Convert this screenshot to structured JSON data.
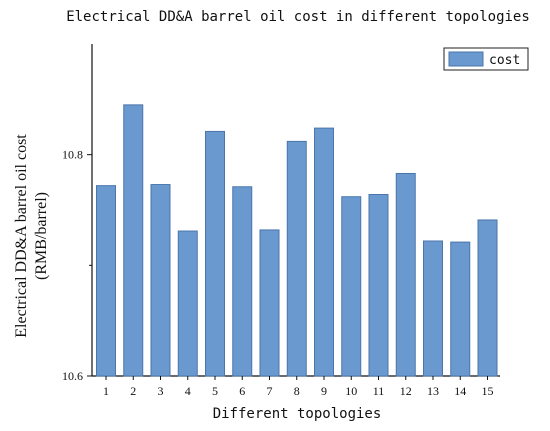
{
  "chart_data": {
    "type": "bar",
    "title": "Electrical DD&A barrel oil cost in different topologies",
    "xlabel": "Different topologies",
    "ylabel_line1": "Electrical DD&A barrel oil cost",
    "ylabel_line2": "(RMB/barrel)",
    "categories": [
      "1",
      "2",
      "3",
      "4",
      "5",
      "6",
      "7",
      "8",
      "9",
      "10",
      "11",
      "12",
      "13",
      "14",
      "15"
    ],
    "series": [
      {
        "name": "cost",
        "values": [
          10.772,
          10.845,
          10.773,
          10.731,
          10.821,
          10.771,
          10.732,
          10.812,
          10.824,
          10.762,
          10.764,
          10.783,
          10.722,
          10.721,
          10.741
        ]
      }
    ],
    "ylim": [
      10.6,
      10.9
    ],
    "yticks_labeled": [
      "10.6",
      "10.8"
    ],
    "legend_position": "top-right",
    "colors": {
      "bar_fill": "#6a99d0",
      "bar_stroke": "#4a76aa"
    },
    "grid": false
  }
}
